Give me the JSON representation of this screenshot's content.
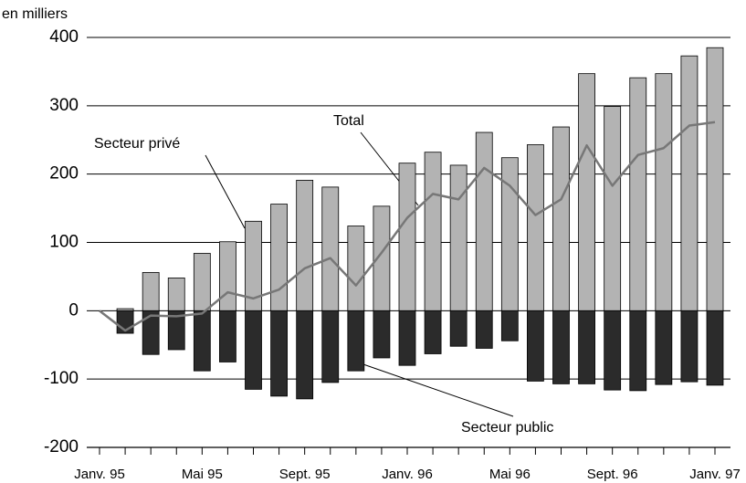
{
  "chart_data": {
    "type": "bar",
    "unit_label": "en milliers",
    "categories": [
      "Janv. 95",
      null,
      null,
      null,
      "Mai 95",
      null,
      null,
      null,
      "Sept. 95",
      null,
      null,
      null,
      "Janv. 96",
      null,
      null,
      null,
      "Mai 96",
      null,
      null,
      null,
      "Sept. 96",
      null,
      null,
      null,
      "Janv. 97"
    ],
    "series": [
      {
        "name": "Secteur privé",
        "color": "#b3b3b3",
        "values": [
          null,
          3,
          56,
          48,
          84,
          101,
          131,
          156,
          191,
          181,
          124,
          153,
          216,
          232,
          213,
          261,
          224,
          243,
          269,
          347,
          299,
          341,
          347,
          373,
          385
        ]
      },
      {
        "name": "Secteur public",
        "color": "#2b2b2b",
        "values": [
          null,
          -33,
          -64,
          -57,
          -88,
          -75,
          -115,
          -125,
          -129,
          -105,
          -88,
          -69,
          -80,
          -63,
          -52,
          -55,
          -44,
          -103,
          -107,
          -107,
          -116,
          -117,
          -108,
          -104,
          -109
        ]
      },
      {
        "name": "Total",
        "type": "line",
        "color": "#777777",
        "values": [
          0,
          -29,
          -7,
          -8,
          -4,
          27,
          18,
          31,
          62,
          77,
          37,
          85,
          136,
          171,
          163,
          209,
          183,
          140,
          163,
          242,
          183,
          228,
          238,
          271,
          276
        ]
      }
    ],
    "ylim": [
      -200,
      400
    ],
    "yticks": [
      -200,
      -100,
      0,
      100,
      200,
      300,
      400
    ],
    "grid": true
  }
}
